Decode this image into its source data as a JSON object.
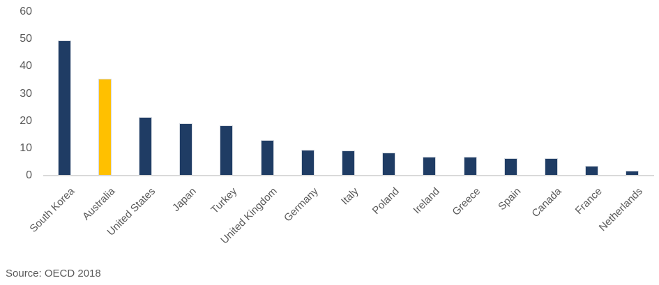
{
  "source": "Source: OECD 2018",
  "colors": {
    "bar": "#1F3C64",
    "highlight": "#FFC000",
    "axis_line": "#D9D9D9",
    "label_text": "#595959"
  },
  "chart_data": {
    "type": "bar",
    "title": "",
    "xlabel": "",
    "ylabel": "",
    "categories": [
      "South Korea",
      "Australia",
      "United States",
      "Japan",
      "Turkey",
      "United Kingdom",
      "Germany",
      "Italy",
      "Poland",
      "Ireland",
      "Greece",
      "Spain",
      "Canada",
      "France",
      "Netherlands"
    ],
    "values": [
      49.5,
      35.5,
      21.4,
      19.1,
      18.3,
      13.1,
      9.4,
      9.1,
      8.3,
      6.8,
      6.8,
      6.5,
      6.3,
      3.6,
      1.8
    ],
    "highlight_category": "Australia",
    "ylim": [
      0,
      60
    ],
    "yticks": [
      0,
      10,
      20,
      30,
      40,
      50,
      60
    ],
    "grid": false,
    "legend": false,
    "bar_color_name": "dark-navy",
    "highlight_color_name": "gold",
    "source": "Source: OECD 2018"
  }
}
